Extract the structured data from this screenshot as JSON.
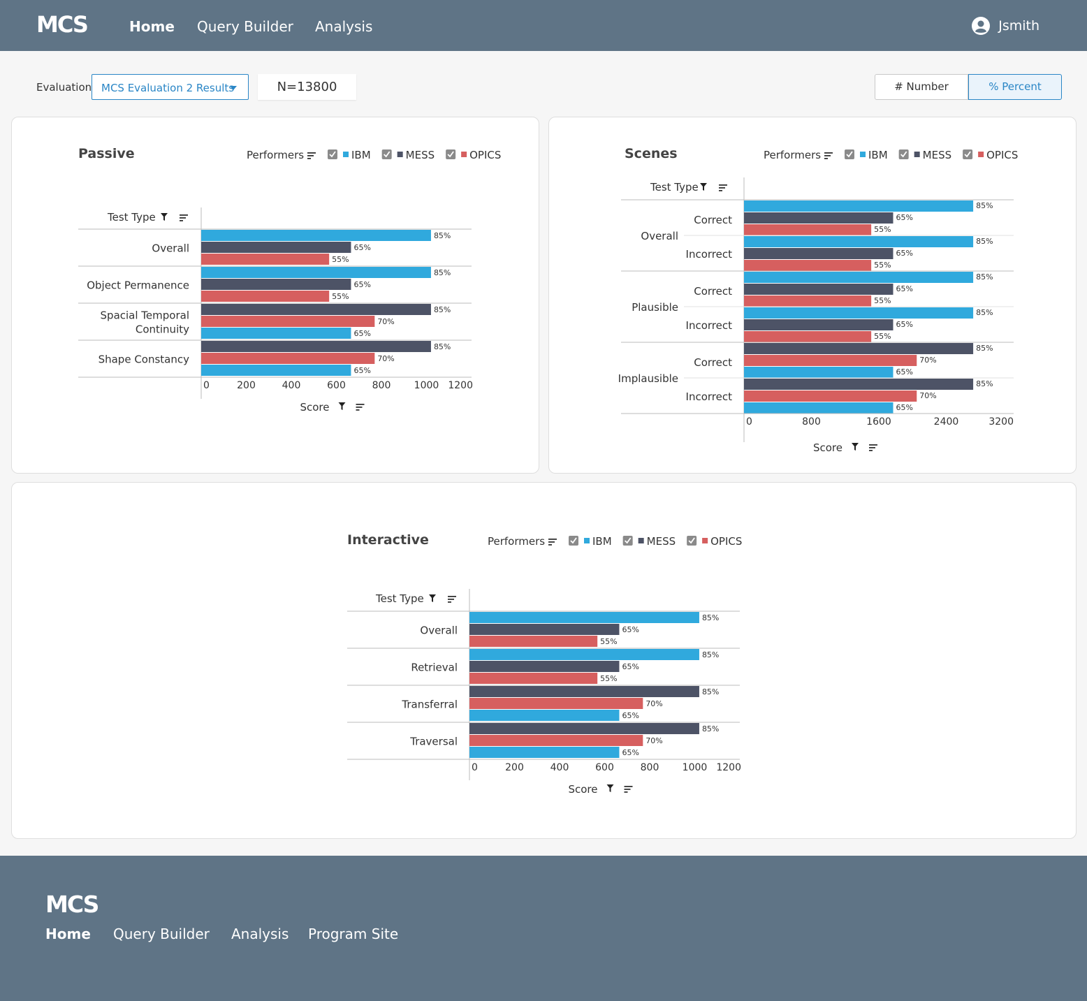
{
  "app": {
    "logo": "MCS"
  },
  "nav": {
    "items": [
      {
        "label": "Home",
        "active": true
      },
      {
        "label": "Query Builder",
        "active": false
      },
      {
        "label": "Analysis",
        "active": false
      }
    ],
    "user": "Jsmith"
  },
  "toolbar": {
    "evaluation_label": "Evaluation",
    "evaluation_value": "MCS Evaluation 2 Results",
    "n_count": "N=13800",
    "number_option": "# Number",
    "percent_option": "% Percent",
    "selected_mode": "% Percent"
  },
  "legend": {
    "label": "Performers",
    "items": [
      {
        "name": "IBM",
        "color": "#30a9dd",
        "checked": true
      },
      {
        "name": "MESS",
        "color": "#4d5366",
        "checked": true
      },
      {
        "name": "OPICS",
        "color": "#d65f5f",
        "checked": true
      }
    ]
  },
  "colors": {
    "IBM": "#30a9dd",
    "MESS": "#4d5366",
    "OPICS": "#d65f5f",
    "accent": "#2a86c6",
    "nav": "#5f7486"
  },
  "chart_data": [
    {
      "id": "passive",
      "type": "bar",
      "orientation": "horizontal",
      "title": "Passive",
      "category_header": "Test Type",
      "xlabel": "Score",
      "xlim": [
        0,
        1200
      ],
      "xticks": [
        0,
        200,
        400,
        600,
        800,
        1000,
        1200
      ],
      "groups": [
        {
          "label": "Overall",
          "bars": [
            {
              "series": "IBM",
              "value": 1020,
              "label": "85%"
            },
            {
              "series": "MESS",
              "value": 665,
              "label": "65%"
            },
            {
              "series": "OPICS",
              "value": 568,
              "label": "55%"
            }
          ]
        },
        {
          "label": "Object Permanence",
          "bars": [
            {
              "series": "IBM",
              "value": 1020,
              "label": "85%"
            },
            {
              "series": "MESS",
              "value": 665,
              "label": "65%"
            },
            {
              "series": "OPICS",
              "value": 568,
              "label": "55%"
            }
          ]
        },
        {
          "label": "Spacial Temporal Continuity",
          "bars": [
            {
              "series": "MESS",
              "value": 1020,
              "label": "85%"
            },
            {
              "series": "OPICS",
              "value": 770,
              "label": "70%"
            },
            {
              "series": "IBM",
              "value": 665,
              "label": "65%"
            }
          ]
        },
        {
          "label": "Shape Constancy",
          "bars": [
            {
              "series": "MESS",
              "value": 1020,
              "label": "85%"
            },
            {
              "series": "OPICS",
              "value": 770,
              "label": "70%"
            },
            {
              "series": "IBM",
              "value": 665,
              "label": "65%"
            }
          ]
        }
      ]
    },
    {
      "id": "scenes",
      "type": "bar",
      "orientation": "horizontal",
      "title": "Scenes",
      "category_header": "Test Type",
      "xlabel": "Score",
      "xlim": [
        0,
        3200
      ],
      "xticks": [
        0,
        800,
        1600,
        2400,
        3200
      ],
      "groups": [
        {
          "label": "Overall",
          "sub": [
            {
              "label": "Correct",
              "bars": [
                {
                  "series": "IBM",
                  "value": 2720,
                  "label": "85%"
                },
                {
                  "series": "MESS",
                  "value": 1770,
                  "label": "65%"
                },
                {
                  "series": "OPICS",
                  "value": 1510,
                  "label": "55%"
                }
              ]
            },
            {
              "label": "Incorrect",
              "bars": [
                {
                  "series": "IBM",
                  "value": 2720,
                  "label": "85%"
                },
                {
                  "series": "MESS",
                  "value": 1770,
                  "label": "65%"
                },
                {
                  "series": "OPICS",
                  "value": 1510,
                  "label": "55%"
                }
              ]
            }
          ]
        },
        {
          "label": "Plausible",
          "sub": [
            {
              "label": "Correct",
              "bars": [
                {
                  "series": "IBM",
                  "value": 2720,
                  "label": "85%"
                },
                {
                  "series": "MESS",
                  "value": 1770,
                  "label": "65%"
                },
                {
                  "series": "OPICS",
                  "value": 1510,
                  "label": "55%"
                }
              ]
            },
            {
              "label": "Incorrect",
              "bars": [
                {
                  "series": "IBM",
                  "value": 2720,
                  "label": "85%"
                },
                {
                  "series": "MESS",
                  "value": 1770,
                  "label": "65%"
                },
                {
                  "series": "OPICS",
                  "value": 1510,
                  "label": "55%"
                }
              ]
            }
          ]
        },
        {
          "label": "Implausible",
          "sub": [
            {
              "label": "Correct",
              "bars": [
                {
                  "series": "MESS",
                  "value": 2720,
                  "label": "85%"
                },
                {
                  "series": "OPICS",
                  "value": 2050,
                  "label": "70%"
                },
                {
                  "series": "IBM",
                  "value": 1770,
                  "label": "65%"
                }
              ]
            },
            {
              "label": "Incorrect",
              "bars": [
                {
                  "series": "MESS",
                  "value": 2720,
                  "label": "85%"
                },
                {
                  "series": "OPICS",
                  "value": 2050,
                  "label": "70%"
                },
                {
                  "series": "IBM",
                  "value": 1770,
                  "label": "65%"
                }
              ]
            }
          ]
        }
      ]
    },
    {
      "id": "interactive",
      "type": "bar",
      "orientation": "horizontal",
      "title": "Interactive",
      "category_header": "Test Type",
      "xlabel": "Score",
      "xlim": [
        0,
        1200
      ],
      "xticks": [
        0,
        200,
        400,
        600,
        800,
        1000,
        1200
      ],
      "groups": [
        {
          "label": "Overall",
          "bars": [
            {
              "series": "IBM",
              "value": 1020,
              "label": "85%"
            },
            {
              "series": "MESS",
              "value": 665,
              "label": "65%"
            },
            {
              "series": "OPICS",
              "value": 568,
              "label": "55%"
            }
          ]
        },
        {
          "label": "Retrieval",
          "bars": [
            {
              "series": "IBM",
              "value": 1020,
              "label": "85%"
            },
            {
              "series": "MESS",
              "value": 665,
              "label": "65%"
            },
            {
              "series": "OPICS",
              "value": 568,
              "label": "55%"
            }
          ]
        },
        {
          "label": "Transferral",
          "bars": [
            {
              "series": "MESS",
              "value": 1020,
              "label": "85%"
            },
            {
              "series": "OPICS",
              "value": 770,
              "label": "70%"
            },
            {
              "series": "IBM",
              "value": 665,
              "label": "65%"
            }
          ]
        },
        {
          "label": "Traversal",
          "bars": [
            {
              "series": "MESS",
              "value": 1020,
              "label": "85%"
            },
            {
              "series": "OPICS",
              "value": 770,
              "label": "70%"
            },
            {
              "series": "IBM",
              "value": 665,
              "label": "65%"
            }
          ]
        }
      ]
    }
  ],
  "footer": {
    "logo": "MCS",
    "items": [
      {
        "label": "Home",
        "active": true
      },
      {
        "label": "Query Builder",
        "active": false
      },
      {
        "label": "Analysis",
        "active": false
      },
      {
        "label": "Program Site",
        "active": false
      }
    ]
  }
}
